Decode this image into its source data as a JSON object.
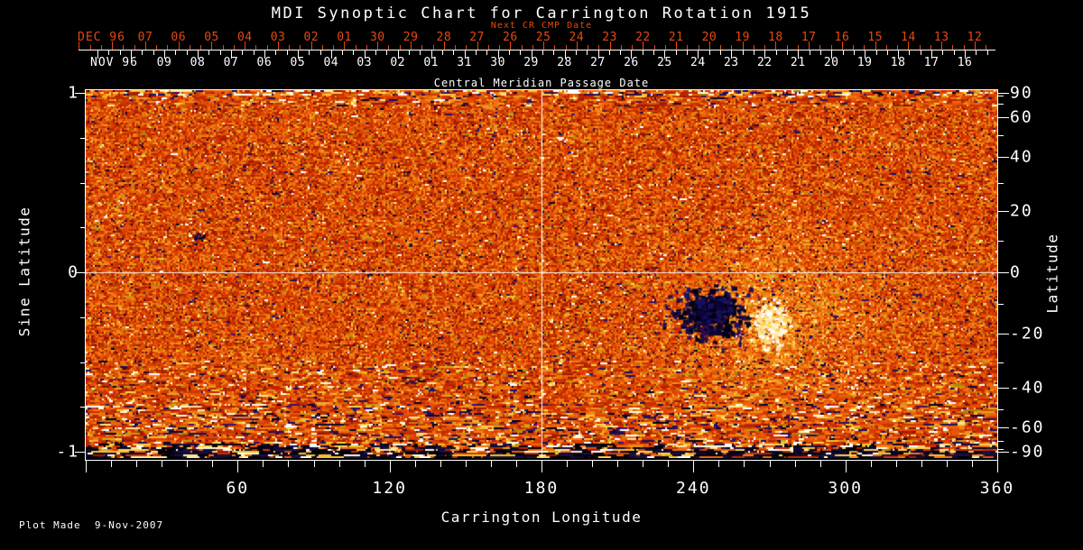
{
  "title": "MDI Synoptic Chart for Carrington Rotation 1915",
  "colors": {
    "background": "#000000",
    "axis": "#ffffff",
    "next_cr_red": "#e8480e"
  },
  "top_axis": {
    "next_cr_title": "Next CR CMP Date",
    "subtitle": "Central Meridian Passage Date",
    "next_cr_month": "DEC 96",
    "next_cr_days": [
      "07",
      "06",
      "05",
      "04",
      "03",
      "02",
      "01",
      "30",
      "29",
      "28",
      "27",
      "26",
      "25",
      "24",
      "23",
      "22",
      "21",
      "20",
      "19",
      "18",
      "17",
      "16",
      "15",
      "14",
      "13",
      "12"
    ],
    "cmp_month": "NOV 96",
    "cmp_days": [
      "09",
      "08",
      "07",
      "06",
      "05",
      "04",
      "03",
      "02",
      "01",
      "31",
      "30",
      "29",
      "28",
      "27",
      "26",
      "25",
      "24",
      "23",
      "22",
      "21",
      "20",
      "19",
      "18",
      "17",
      "16"
    ]
  },
  "left_axis": {
    "label": "Sine Latitude",
    "tick_labels": [
      "1",
      "0",
      "-1"
    ]
  },
  "right_axis": {
    "label": "Latitude",
    "tick_labels": [
      "90",
      "60",
      "40",
      "20",
      "0",
      "-20",
      "-40",
      "-60",
      "-90"
    ]
  },
  "bottom_axis": {
    "label": "Carrington Longitude",
    "tick_labels": [
      "60",
      "120",
      "180",
      "240",
      "300",
      "360"
    ]
  },
  "footer": {
    "plot_made": "Plot Made  9-Nov-2007"
  },
  "chart_data": {
    "type": "heatmap",
    "title": "MDI Synoptic Chart for Carrington Rotation 1915",
    "xlabel": "Carrington Longitude",
    "xlim": [
      0,
      360
    ],
    "xticks": [
      60,
      120,
      180,
      240,
      300,
      360
    ],
    "x_minor_tick_step_deg": 10,
    "ylabel_left": "Sine Latitude",
    "ylim_left": [
      -1,
      1
    ],
    "yticks_left": [
      1,
      0,
      -1
    ],
    "y_minor_tick_step_sine": 0.25,
    "ylabel_right": "Latitude",
    "yticks_right": [
      90,
      60,
      40,
      20,
      0,
      -20,
      -40,
      -60,
      -90
    ],
    "y_scale": "sine-latitude",
    "top_axis_cmp_dates": {
      "month_start": "NOV 96",
      "days": [
        "09",
        "08",
        "07",
        "06",
        "05",
        "04",
        "03",
        "02",
        "01",
        "31",
        "30",
        "29",
        "28",
        "27",
        "26",
        "25",
        "24",
        "23",
        "22",
        "21",
        "20",
        "19",
        "18",
        "17",
        "16"
      ]
    },
    "top_axis_next_cr_dates": {
      "month_start": "DEC 96",
      "days": [
        "07",
        "06",
        "05",
        "04",
        "03",
        "02",
        "01",
        "30",
        "29",
        "28",
        "27",
        "26",
        "25",
        "24",
        "23",
        "22",
        "21",
        "20",
        "19",
        "18",
        "17",
        "16",
        "15",
        "14",
        "13",
        "12"
      ]
    },
    "gridlines": {
      "vertical_at_longitude": 180,
      "horizontal_at_latitude": 0
    },
    "colormap": "signed magnetic field: dark navy/black (negative) through red-orange (near zero) to yellow/white (positive)",
    "features": [
      {
        "name": "bipolar-active-region",
        "longitude": 248,
        "latitude": -15,
        "description": "cluster of dark negative-polarity flux near 230-265 deg longitude with adjacent bright positive plage near 265-285 deg, latitude -10 to -25"
      },
      {
        "name": "small-bipole",
        "longitude": 44,
        "latitude": 13,
        "description": "small dark spot with faint bright companion in the north-west quadrant"
      },
      {
        "name": "polar-noise-bands",
        "description": "streaky high-amplitude speckle noise along the top and bottom (polar) edges; bottom-most rows nearly black with white streaks"
      }
    ],
    "annotations": [
      "Plot Made  9-Nov-2007"
    ]
  }
}
